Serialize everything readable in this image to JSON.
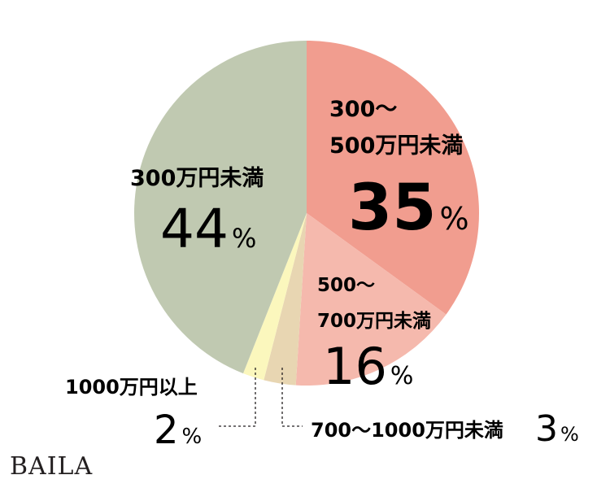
{
  "chart_data": {
    "type": "pie",
    "slices": [
      {
        "label": "300～500万円未満",
        "label_lines": [
          "300～",
          "500万円未満"
        ],
        "value": 35,
        "value_text": "35",
        "color": "#f19d8f"
      },
      {
        "label": "500～700万円未満",
        "label_lines": [
          "500～",
          "700万円未満"
        ],
        "value": 16,
        "value_text": "16",
        "color": "#f5b9ad"
      },
      {
        "label": "700～1000万円未満",
        "label_lines": [
          "700～1000万円未満"
        ],
        "value": 3,
        "value_text": "3",
        "color": "#e8d6b2"
      },
      {
        "label": "1000万円以上",
        "label_lines": [
          "1000万円以上"
        ],
        "value": 2,
        "value_text": "2",
        "color": "#fbf7bd"
      },
      {
        "label": "300万円未満",
        "label_lines": [
          "300万円未満"
        ],
        "value": 44,
        "value_text": "44",
        "color": "#c0c9b1"
      }
    ],
    "unit": "%"
  },
  "brand": {
    "logo": "BAILA"
  }
}
